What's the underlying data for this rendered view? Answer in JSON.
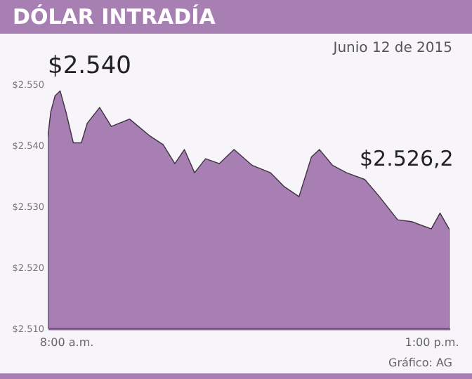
{
  "chart_data": {
    "type": "area",
    "title": "DÓLAR INTRADÍA",
    "subtitle": "Junio 12 de 2015",
    "annotations": [
      "$2.540",
      "$2.526,2",
      "Gráfico: AG"
    ],
    "x": [
      7.75,
      7.79,
      7.85,
      7.92,
      8.0,
      8.1,
      8.21,
      8.29,
      8.46,
      8.62,
      8.87,
      9.14,
      9.33,
      9.49,
      9.62,
      9.76,
      9.91,
      10.1,
      10.3,
      10.55,
      10.8,
      10.99,
      11.19,
      11.36,
      11.47,
      11.65,
      11.84,
      12.09,
      12.29,
      12.54,
      12.73,
      13.0,
      13.12,
      13.25
    ],
    "series": [
      {
        "color": "#a87fb3",
        "values": [
          2541.2,
          2545.4,
          2548.1,
          2548.9,
          2545.4,
          2540.4,
          2540.4,
          2543.6,
          2546.2,
          2543.1,
          2544.3,
          2541.6,
          2540.1,
          2537.0,
          2539.3,
          2535.5,
          2537.8,
          2537.0,
          2539.3,
          2536.7,
          2535.5,
          2533.2,
          2531.6,
          2538.1,
          2539.3,
          2536.7,
          2535.5,
          2534.4,
          2531.6,
          2527.8,
          2527.5,
          2526.3,
          2528.9,
          2526.2
        ]
      }
    ],
    "xlim": [
      7.75,
      13.25
    ],
    "ylim": [
      2510,
      2550
    ],
    "xticks": [
      {
        "value": 8,
        "label": "8:00 a.m."
      },
      {
        "value": 13,
        "label": "1:00 p.m."
      }
    ],
    "yticks": [
      {
        "value": 2510,
        "label": "$2.510"
      },
      {
        "value": 2520,
        "label": "$2.520"
      },
      {
        "value": 2530,
        "label": "$2.530"
      },
      {
        "value": 2540,
        "label": "$2.540"
      },
      {
        "value": 2550,
        "label": "$2.550"
      }
    ],
    "grid": false,
    "legend": false
  }
}
